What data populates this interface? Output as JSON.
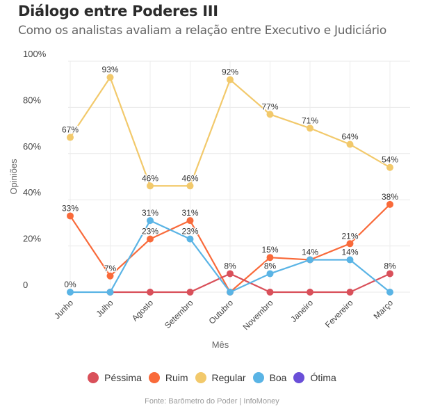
{
  "header": {
    "title": "Diálogo entre Poderes III",
    "subtitle": "Como os analistas avaliam a relação entre Executivo e Judiciário"
  },
  "footer": {
    "source": "Fonte: Barômetro do Poder | InfoMoney"
  },
  "chart_data": {
    "type": "line",
    "title": "Diálogo entre Poderes III",
    "subtitle": "Como os analistas avaliam a relação entre Executivo e Judiciário",
    "xlabel": "Mês",
    "ylabel": "Opiniões",
    "categories": [
      "Junho",
      "Julho",
      "Agosto",
      "Setembro",
      "Outubro",
      "Novembro",
      "Janeiro",
      "Fevereiro",
      "Março"
    ],
    "ylim": [
      0,
      100
    ],
    "yticks": [
      {
        "value": 0,
        "label": "0"
      },
      {
        "value": 20,
        "label": "20%"
      },
      {
        "value": 40,
        "label": "40%"
      },
      {
        "value": 60,
        "label": "60%"
      },
      {
        "value": 80,
        "label": "80%"
      },
      {
        "value": 100,
        "label": "100%"
      }
    ],
    "grid": true,
    "legend_position": "bottom",
    "series": [
      {
        "name": "Péssima",
        "color": "#d9505a",
        "values": [
          null,
          0,
          0,
          0,
          8,
          0,
          0,
          0,
          8
        ],
        "labels": [
          null,
          null,
          null,
          null,
          "8%",
          null,
          null,
          null,
          "8%"
        ]
      },
      {
        "name": "Ruim",
        "color": "#f96a3a",
        "values": [
          33,
          7,
          23,
          31,
          0,
          15,
          14,
          21,
          38
        ],
        "labels": [
          "33%",
          "7%",
          "23%",
          "31%",
          null,
          "15%",
          null,
          "21%",
          "38%"
        ]
      },
      {
        "name": "Regular",
        "color": "#f2c96b",
        "values": [
          67,
          93,
          46,
          46,
          92,
          77,
          71,
          64,
          54
        ],
        "labels": [
          "67%",
          "93%",
          "46%",
          "46%",
          "92%",
          "77%",
          "71%",
          "64%",
          "54%"
        ]
      },
      {
        "name": "Boa",
        "color": "#5ab4e5",
        "values": [
          0,
          0,
          31,
          23,
          0,
          8,
          14,
          14,
          0
        ],
        "labels": [
          "0%",
          null,
          "31%",
          "23%",
          null,
          "8%",
          "14%",
          "14%",
          null
        ]
      },
      {
        "name": "Ótima",
        "color": "#6a4fd8",
        "values": [],
        "labels": []
      }
    ]
  }
}
